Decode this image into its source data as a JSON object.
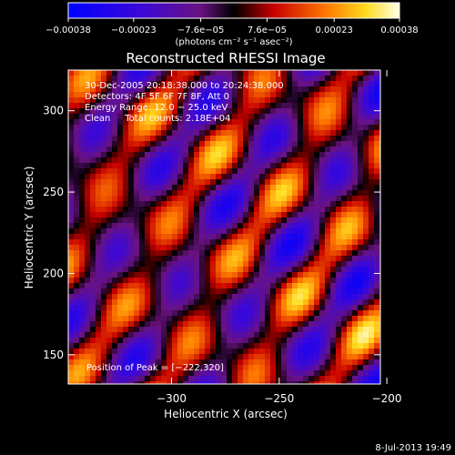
{
  "chart_data": {
    "type": "heatmap",
    "title": "Reconstructed RHESSI Image",
    "xlabel": "Heliocentric X (arcsec)",
    "ylabel": "Heliocentric Y (arcsec)",
    "xlim": [
      -348,
      -203
    ],
    "ylim": [
      132,
      325
    ],
    "x_ticks": [
      {
        "value": -300,
        "label": "−300"
      },
      {
        "value": -250,
        "label": "−250"
      },
      {
        "value": -200,
        "label": "−200"
      }
    ],
    "y_ticks": [
      {
        "value": 150,
        "label": "150"
      },
      {
        "value": 200,
        "label": "200"
      },
      {
        "value": 250,
        "label": "250"
      },
      {
        "value": 300,
        "label": "300"
      }
    ],
    "colorbar": {
      "range": [
        -0.00038,
        0.00038
      ],
      "ticks": [
        {
          "value": -0.00038,
          "label": "−0.00038"
        },
        {
          "value": -0.00023,
          "label": "−0.00023"
        },
        {
          "value": -7.6e-05,
          "label": "−7.6e−05"
        },
        {
          "value": 7.6e-05,
          "label": "7.6e−05"
        },
        {
          "value": 0.00023,
          "label": "0.00023"
        },
        {
          "value": 0.00038,
          "label": "0.00038"
        }
      ],
      "unit_label": "(photons cm⁻² s⁻¹ asec⁻²)"
    },
    "annotations": [
      "30-Dec-2005 20:18:38.000 to 20:24:38.000",
      "Detectors: 4F 5F 6F 7F 8F, Att 0",
      "Energy Range: 12.0 − 25.0 keV",
      "Clean     Total counts: 2.18E+04"
    ],
    "peak_label": "Position of Peak = [−222,320]",
    "peak": {
      "x": -222,
      "y": 320
    },
    "footer_date": "8-Jul-2013 19:49"
  }
}
